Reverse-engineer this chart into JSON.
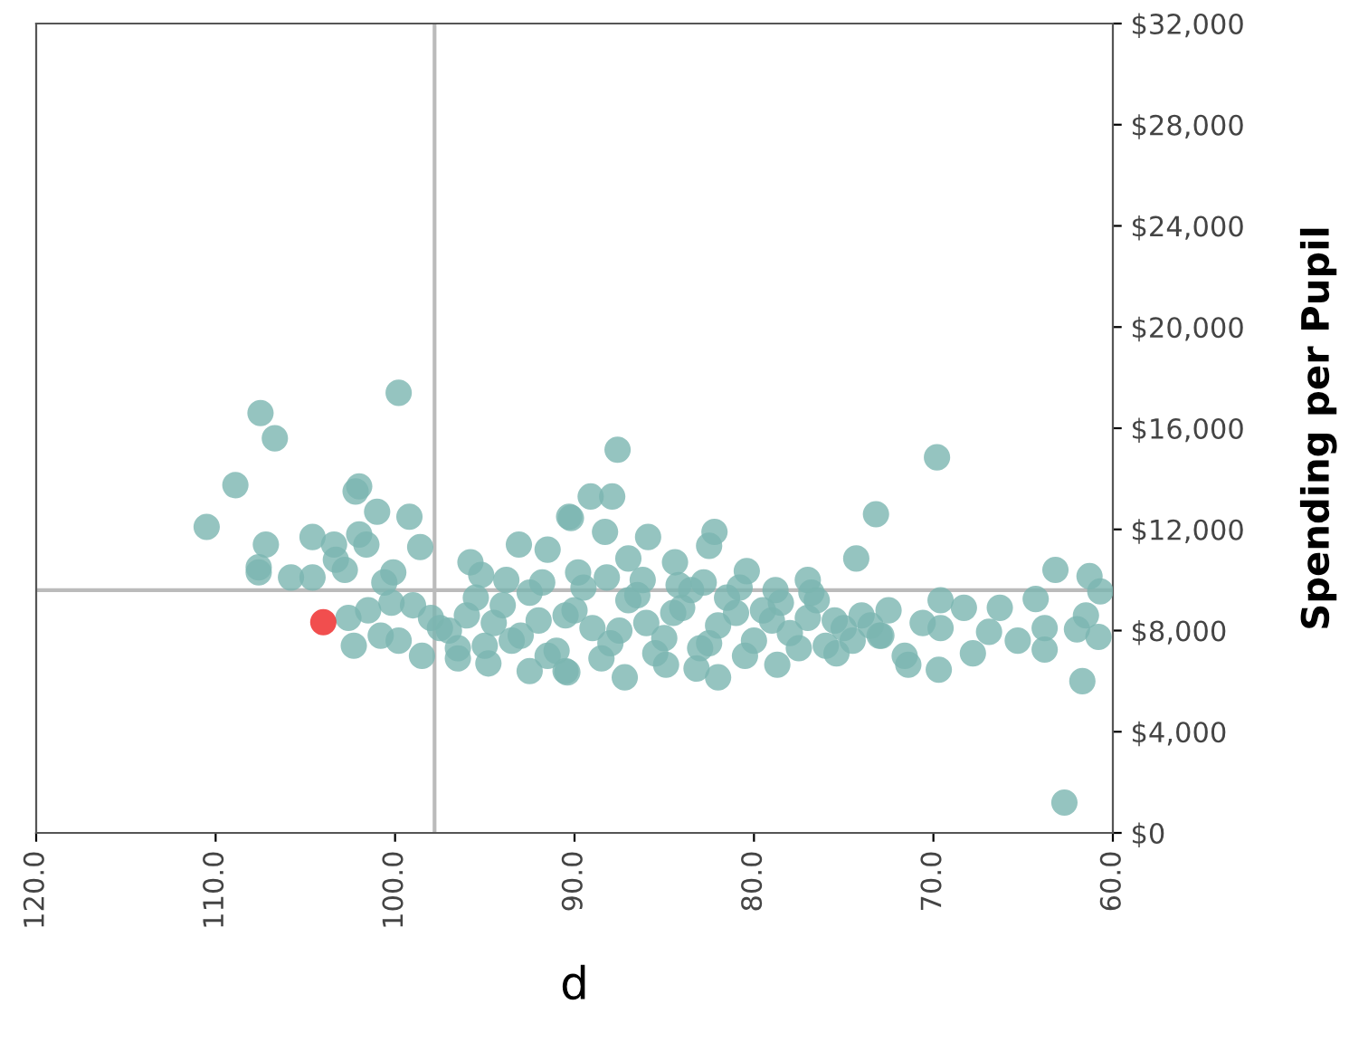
{
  "chart_data": {
    "type": "scatter",
    "xlabel": "p",
    "ylabel": "Spending per Pupil",
    "xlim": [
      120,
      60
    ],
    "ylim": [
      0,
      32000
    ],
    "xticks": [
      {
        "value": 120,
        "label": "120.0"
      },
      {
        "value": 110,
        "label": "110.0"
      },
      {
        "value": 100,
        "label": "100.0"
      },
      {
        "value": 90,
        "label": "90.0"
      },
      {
        "value": 80,
        "label": "80.0"
      },
      {
        "value": 70,
        "label": "70.0"
      },
      {
        "value": 60,
        "label": "60.0"
      }
    ],
    "yticks": [
      {
        "value": 0,
        "label": "$0"
      },
      {
        "value": 4000,
        "label": "$4,000"
      },
      {
        "value": 8000,
        "label": "$8,000"
      },
      {
        "value": 12000,
        "label": "$12,000"
      },
      {
        "value": 16000,
        "label": "$16,000"
      },
      {
        "value": 20000,
        "label": "$20,000"
      },
      {
        "value": 24000,
        "label": "$24,000"
      },
      {
        "value": 28000,
        "label": "$28,000"
      },
      {
        "value": 32000,
        "label": "$32,000"
      }
    ],
    "grid": false,
    "legend": false,
    "marker": "circle",
    "ref_lines": [
      {
        "axis": "x",
        "value": 97.8,
        "label": null,
        "color": "#bbbbbb"
      },
      {
        "axis": "y",
        "value": 9600,
        "label": null,
        "color": "#bbbbbb"
      }
    ],
    "series": [
      {
        "color": "#7ab5b0",
        "x": [
          107.5,
          106.7,
          99.8,
          108.9,
          110.5,
          102.0,
          102.2,
          101.0,
          99.2,
          107.2,
          107.6,
          107.6,
          104.6,
          103.4,
          102.0,
          101.6,
          103.3,
          102.8,
          105.8,
          104.6,
          98.6,
          100.1,
          100.6,
          102.6,
          102.3,
          100.8,
          99.8,
          98.5,
          98.0,
          96.5,
          94.8,
          95.8,
          93.1,
          91.5,
          90.3,
          92.5,
          90.5,
          87.6,
          89.1,
          87.9,
          90.2,
          88.3,
          85.9,
          82.2,
          82.5,
          87.0,
          84.4,
          80.4,
          69.8,
          73.2,
          74.3,
          63.2,
          61.3,
          60.7,
          61.5,
          62.0,
          60.8,
          61.7,
          62.7,
          63.8,
          63.8,
          65.3,
          66.9,
          67.8,
          69.7,
          69.6,
          69.6,
          68.3,
          66.3,
          64.3,
          71.4,
          71.6,
          70.6,
          72.9,
          75.4,
          77.0,
          78.7,
          82.0,
          87.2,
          90.4,
          84.9,
          83.2,
          97.0,
          96.0,
          95.0,
          94.0,
          93.0,
          92.0,
          91.0,
          90.0,
          89.0,
          88.0,
          87.0,
          86.0,
          85.0,
          84.0,
          83.0,
          82.0,
          81.0,
          80.0,
          79.0,
          78.0,
          77.0,
          76.0,
          75.0,
          74.0,
          73.0,
          96.5,
          95.5,
          94.5,
          93.5,
          92.5,
          91.5,
          90.5,
          89.5,
          88.5,
          87.5,
          86.5,
          85.5,
          84.5,
          83.5,
          82.5,
          81.5,
          80.5,
          79.5,
          78.5,
          77.5,
          76.5,
          75.5,
          74.5,
          73.5,
          72.5,
          99.0,
          97.5,
          95.2,
          93.8,
          91.8,
          89.8,
          88.2,
          86.2,
          84.2,
          82.8,
          80.8,
          78.8,
          76.8,
          101.5,
          100.2
        ],
        "values": [
          16600,
          15600,
          17400,
          13750,
          12100,
          13700,
          13500,
          12700,
          12500,
          11400,
          10500,
          10300,
          11700,
          11400,
          11800,
          11400,
          10800,
          10400,
          10100,
          10100,
          11300,
          10300,
          9900,
          8500,
          7400,
          7800,
          7600,
          7000,
          8500,
          6900,
          6700,
          10700,
          11400,
          11200,
          12500,
          6400,
          6400,
          15150,
          13300,
          13300,
          12450,
          11900,
          11700,
          11900,
          11350,
          10850,
          10700,
          10350,
          14850,
          12600,
          10850,
          10400,
          10150,
          9550,
          8600,
          8050,
          7750,
          6000,
          1200,
          7250,
          8100,
          7600,
          7950,
          7100,
          6450,
          8100,
          9200,
          8900,
          8900,
          9250,
          6650,
          7000,
          8300,
          7800,
          7100,
          10000,
          6650,
          6150,
          6150,
          6350,
          6650,
          6500,
          8000,
          8600,
          7400,
          9000,
          7800,
          8400,
          7200,
          8800,
          8100,
          7500,
          9200,
          8300,
          7700,
          8900,
          7300,
          8200,
          8700,
          7600,
          8400,
          7900,
          8500,
          7400,
          8100,
          8600,
          7800,
          7300,
          9300,
          8300,
          7600,
          9500,
          7000,
          8600,
          9700,
          6900,
          8000,
          9400,
          7100,
          8700,
          9600,
          7500,
          9300,
          7000,
          8800,
          9100,
          7300,
          9200,
          8400,
          7600,
          8200,
          8800,
          9000,
          8100,
          10200,
          10000,
          9900,
          10300,
          10100,
          10000,
          9800,
          9900,
          9700,
          9600,
          9500,
          8800,
          9100
        ]
      },
      {
        "color": "#ee2222",
        "x": [
          104.0
        ],
        "values": [
          8330
        ]
      }
    ]
  }
}
